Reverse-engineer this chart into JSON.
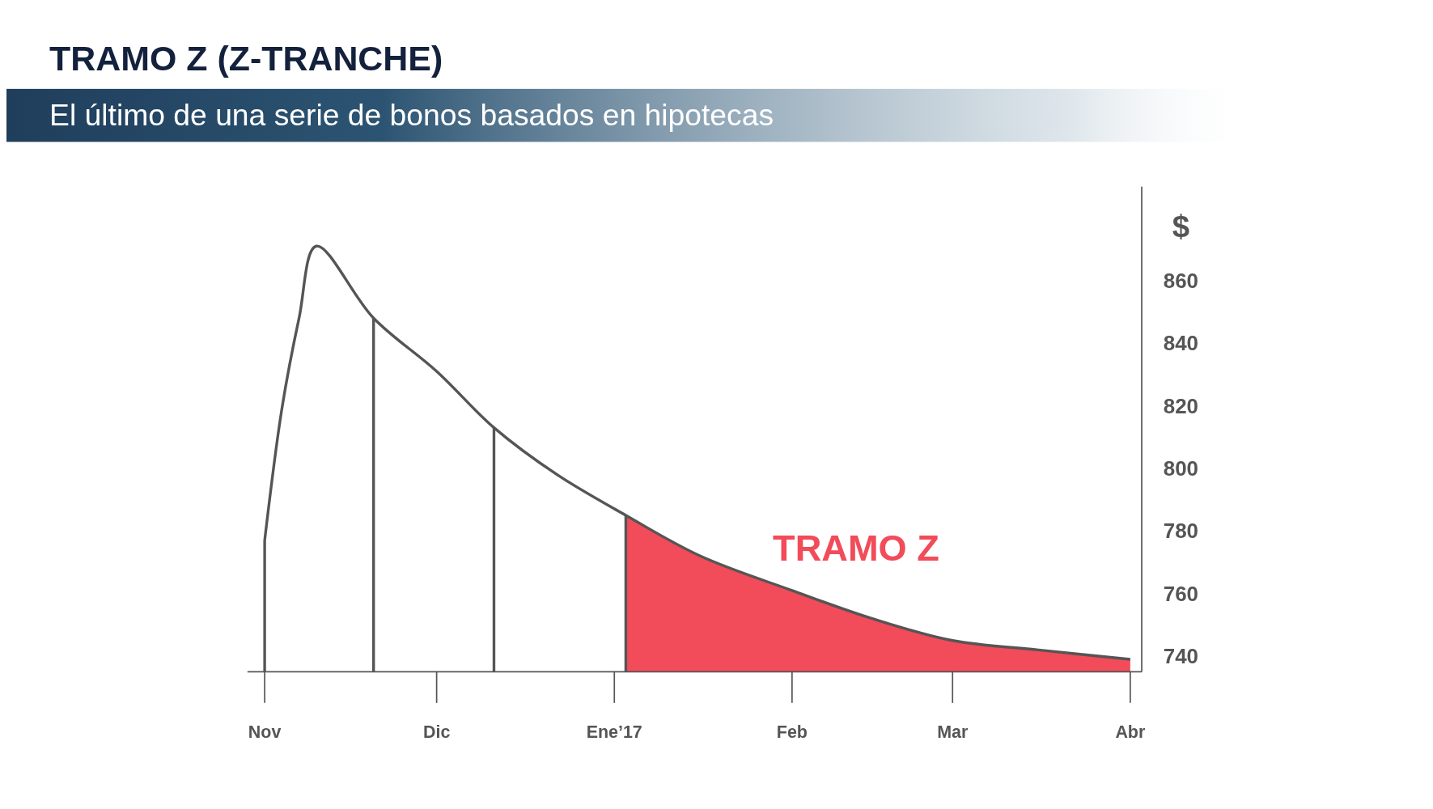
{
  "chart_data": {
    "type": "line",
    "title": "TRAMO Z (Z-TRANCHE)",
    "subtitle": "El último de una serie de bonos basados en hipotecas",
    "ylabel": "$",
    "xlim": [
      "2016-10-29",
      "2017-04-03"
    ],
    "xticks": [
      {
        "value": "2016-11-01",
        "label": "Nov"
      },
      {
        "value": "2016-12-01",
        "label": "Dic"
      },
      {
        "value": "2017-01-01",
        "label": "Ene’17"
      },
      {
        "value": "2017-02-01",
        "label": "Feb"
      },
      {
        "value": "2017-03-01",
        "label": "Mar"
      },
      {
        "value": "2017-04-01",
        "label": "Abr"
      }
    ],
    "ylim": [
      735,
      890
    ],
    "yticks": [
      740,
      760,
      780,
      800,
      820,
      840,
      860
    ],
    "series": [
      {
        "color": "#555555",
        "x": [
          "2016-11-01",
          "2016-11-04",
          "2016-11-07",
          "2016-11-10",
          "2016-11-20",
          "2016-12-01",
          "2016-12-11",
          "2016-12-22",
          "2017-01-03",
          "2017-01-16",
          "2017-02-01",
          "2017-02-15",
          "2017-03-01",
          "2017-03-16",
          "2017-04-01"
        ],
        "values": [
          777,
          819,
          848,
          871,
          848,
          831,
          813,
          798,
          785,
          772,
          761,
          752,
          745,
          742,
          739
        ]
      },
      {
        "type": "area",
        "color": "#f24b59",
        "x": [
          "2017-01-03",
          "2017-01-16",
          "2017-02-01",
          "2017-02-15",
          "2017-03-01",
          "2017-03-16",
          "2017-04-01"
        ],
        "values": [
          785,
          772,
          761,
          752,
          745,
          742,
          739
        ]
      }
    ],
    "ref_lines": [
      {
        "axis": "x",
        "value": "2016-11-01",
        "color": "#555555"
      },
      {
        "axis": "x",
        "value": "2016-11-20",
        "color": "#555555"
      },
      {
        "axis": "x",
        "value": "2016-12-11",
        "color": "#555555"
      },
      {
        "axis": "x",
        "value": "2017-01-03",
        "color": "#555555"
      }
    ],
    "annotations": [
      "TRAMO Z"
    ]
  }
}
